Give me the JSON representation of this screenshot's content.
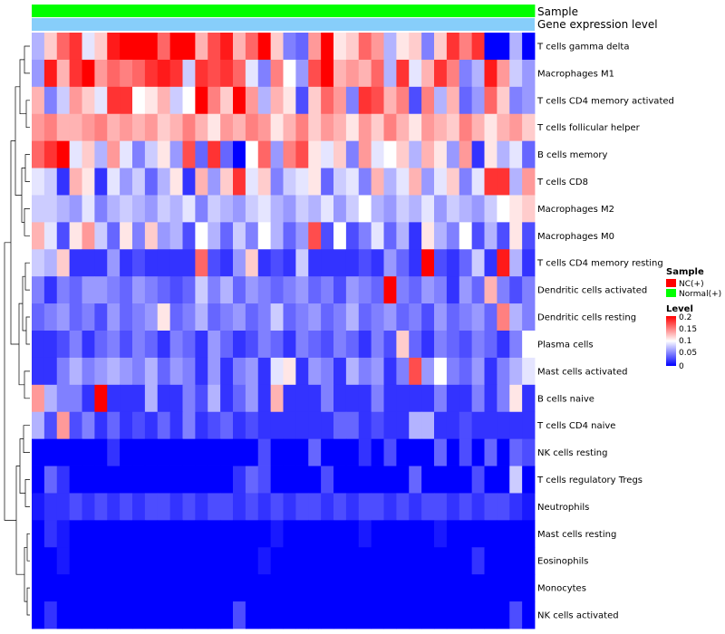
{
  "chart_data": {
    "type": "heatmap",
    "title": "",
    "annotation_tracks": [
      "Sample",
      "Gene expression level"
    ],
    "sample_groups": [
      "N",
      "N",
      "N",
      "N",
      "N",
      "N",
      "N",
      "N",
      "N",
      "N",
      "N",
      "N",
      "N",
      "N",
      "N",
      "N",
      "N",
      "N",
      "N",
      "N",
      "N",
      "N",
      "N",
      "N",
      "N",
      "N",
      "N",
      "N",
      "N",
      "N",
      "N",
      "N",
      "N",
      "N",
      "N",
      "N",
      "N",
      "N",
      "N",
      "N"
    ],
    "rows": [
      "T cells gamma delta",
      "Macrophages M1",
      "T cells CD4 memory activated",
      "T cells follicular helper",
      "B cells memory",
      "T cells CD8",
      "Macrophages M2",
      "Macrophages M0",
      "T cells CD4 memory resting",
      "Dendritic cells activated",
      "Dendritic cells resting",
      "Plasma cells",
      "Mast cells activated",
      "B cells naive",
      "T cells CD4 naive",
      "NK cells resting",
      "T cells regulatory  Tregs",
      "Neutrophils",
      "Mast cells resting",
      "Eosinophils",
      "Monocytes",
      "NK cells activated"
    ],
    "values": [
      [
        0.07,
        0.12,
        0.16,
        0.18,
        0.09,
        0.12,
        0.19,
        0.21,
        0.22,
        0.21,
        0.16,
        0.22,
        0.2,
        0.13,
        0.17,
        0.19,
        0.13,
        0.16,
        0.21,
        0.12,
        0.05,
        0.04,
        0.14,
        0.21,
        0.11,
        0.12,
        0.16,
        0.14,
        0.07,
        0.11,
        0.12,
        0.05,
        0.12,
        0.18,
        0.15,
        0.18,
        0.0,
        0.0,
        0.07,
        0.0
      ],
      [
        0.06,
        0.19,
        0.13,
        0.18,
        0.2,
        0.14,
        0.16,
        0.15,
        0.16,
        0.18,
        0.19,
        0.18,
        0.08,
        0.18,
        0.17,
        0.18,
        0.16,
        0.09,
        0.05,
        0.15,
        0.1,
        0.06,
        0.17,
        0.21,
        0.13,
        0.14,
        0.13,
        0.16,
        0.07,
        0.18,
        0.09,
        0.13,
        0.18,
        0.15,
        0.05,
        0.07,
        0.19,
        0.14,
        0.08,
        0.06
      ],
      [
        0.13,
        0.05,
        0.08,
        0.14,
        0.12,
        0.09,
        0.18,
        0.18,
        0.1,
        0.11,
        0.13,
        0.08,
        0.1,
        0.21,
        0.15,
        0.12,
        0.21,
        0.14,
        0.07,
        0.13,
        0.11,
        0.03,
        0.12,
        0.16,
        0.14,
        0.05,
        0.18,
        0.17,
        0.13,
        0.15,
        0.03,
        0.15,
        0.07,
        0.13,
        0.04,
        0.06,
        0.16,
        0.12,
        0.05,
        0.06
      ],
      [
        0.14,
        0.15,
        0.13,
        0.13,
        0.14,
        0.15,
        0.13,
        0.14,
        0.13,
        0.14,
        0.12,
        0.13,
        0.15,
        0.13,
        0.11,
        0.14,
        0.13,
        0.15,
        0.14,
        0.11,
        0.13,
        0.15,
        0.12,
        0.14,
        0.13,
        0.11,
        0.14,
        0.12,
        0.15,
        0.13,
        0.11,
        0.14,
        0.13,
        0.12,
        0.15,
        0.13,
        0.11,
        0.13,
        0.14,
        0.12
      ],
      [
        0.16,
        0.18,
        0.21,
        0.09,
        0.12,
        0.07,
        0.14,
        0.09,
        0.05,
        0.08,
        0.11,
        0.06,
        0.17,
        0.04,
        0.18,
        0.04,
        0.0,
        0.1,
        0.16,
        0.06,
        0.15,
        0.17,
        0.11,
        0.09,
        0.12,
        0.05,
        0.14,
        0.09,
        0.1,
        0.12,
        0.07,
        0.13,
        0.11,
        0.06,
        0.14,
        0.02,
        0.11,
        0.07,
        0.09,
        0.04
      ],
      [
        0.09,
        0.08,
        0.02,
        0.13,
        0.11,
        0.02,
        0.09,
        0.06,
        0.08,
        0.04,
        0.07,
        0.11,
        0.02,
        0.13,
        0.06,
        0.12,
        0.18,
        0.09,
        0.12,
        0.05,
        0.08,
        0.09,
        0.11,
        0.04,
        0.08,
        0.09,
        0.05,
        0.13,
        0.07,
        0.09,
        0.13,
        0.06,
        0.09,
        0.12,
        0.05,
        0.09,
        0.18,
        0.18,
        0.07,
        0.14
      ],
      [
        0.08,
        0.08,
        0.07,
        0.06,
        0.09,
        0.05,
        0.07,
        0.08,
        0.07,
        0.06,
        0.08,
        0.07,
        0.09,
        0.05,
        0.08,
        0.07,
        0.06,
        0.08,
        0.09,
        0.07,
        0.06,
        0.08,
        0.07,
        0.09,
        0.06,
        0.08,
        0.1,
        0.07,
        0.06,
        0.08,
        0.07,
        0.09,
        0.06,
        0.08,
        0.07,
        0.06,
        0.08,
        0.1,
        0.11,
        0.12
      ],
      [
        0.13,
        0.09,
        0.03,
        0.11,
        0.14,
        0.08,
        0.04,
        0.11,
        0.05,
        0.12,
        0.06,
        0.07,
        0.03,
        0.1,
        0.07,
        0.04,
        0.08,
        0.05,
        0.1,
        0.07,
        0.04,
        0.06,
        0.17,
        0.03,
        0.1,
        0.03,
        0.05,
        0.09,
        0.04,
        0.07,
        0.02,
        0.11,
        0.07,
        0.05,
        0.1,
        0.03,
        0.07,
        0.03,
        0.11,
        0.03
      ],
      [
        0.08,
        0.07,
        0.12,
        0.02,
        0.02,
        0.02,
        0.06,
        0.02,
        0.03,
        0.02,
        0.02,
        0.02,
        0.02,
        0.16,
        0.03,
        0.02,
        0.06,
        0.12,
        0.02,
        0.03,
        0.02,
        0.08,
        0.02,
        0.02,
        0.02,
        0.02,
        0.03,
        0.02,
        0.06,
        0.04,
        0.02,
        0.2,
        0.03,
        0.02,
        0.04,
        0.08,
        0.02,
        0.19,
        0.07,
        0.02
      ],
      [
        0.05,
        0.02,
        0.05,
        0.04,
        0.06,
        0.06,
        0.05,
        0.04,
        0.06,
        0.05,
        0.04,
        0.03,
        0.04,
        0.08,
        0.05,
        0.07,
        0.04,
        0.06,
        0.05,
        0.04,
        0.05,
        0.06,
        0.04,
        0.05,
        0.03,
        0.06,
        0.05,
        0.04,
        0.2,
        0.05,
        0.04,
        0.06,
        0.05,
        0.02,
        0.06,
        0.04,
        0.13,
        0.05,
        0.03,
        0.05
      ],
      [
        0.04,
        0.05,
        0.06,
        0.04,
        0.05,
        0.03,
        0.06,
        0.04,
        0.05,
        0.06,
        0.11,
        0.04,
        0.05,
        0.07,
        0.04,
        0.05,
        0.06,
        0.04,
        0.05,
        0.08,
        0.04,
        0.05,
        0.06,
        0.04,
        0.05,
        0.07,
        0.04,
        0.05,
        0.06,
        0.04,
        0.05,
        0.03,
        0.06,
        0.04,
        0.05,
        0.06,
        0.04,
        0.15,
        0.07,
        0.05
      ],
      [
        0.02,
        0.02,
        0.03,
        0.05,
        0.02,
        0.04,
        0.05,
        0.03,
        0.05,
        0.04,
        0.02,
        0.05,
        0.04,
        0.02,
        0.06,
        0.04,
        0.02,
        0.03,
        0.05,
        0.04,
        0.02,
        0.05,
        0.04,
        0.03,
        0.05,
        0.04,
        0.02,
        0.05,
        0.03,
        0.12,
        0.04,
        0.02,
        0.05,
        0.04,
        0.03,
        0.05,
        0.04,
        0.02,
        0.05,
        0.1
      ],
      [
        0.02,
        0.02,
        0.05,
        0.07,
        0.05,
        0.06,
        0.07,
        0.06,
        0.05,
        0.07,
        0.04,
        0.06,
        0.05,
        0.02,
        0.06,
        0.02,
        0.05,
        0.06,
        0.02,
        0.09,
        0.11,
        0.02,
        0.06,
        0.05,
        0.02,
        0.07,
        0.05,
        0.06,
        0.02,
        0.05,
        0.17,
        0.06,
        0.1,
        0.05,
        0.04,
        0.06,
        0.02,
        0.05,
        0.07,
        0.09
      ],
      [
        0.14,
        0.07,
        0.05,
        0.05,
        0.02,
        0.22,
        0.02,
        0.02,
        0.02,
        0.07,
        0.02,
        0.02,
        0.05,
        0.03,
        0.07,
        0.02,
        0.04,
        0.06,
        0.02,
        0.13,
        0.02,
        0.02,
        0.02,
        0.05,
        0.02,
        0.02,
        0.02,
        0.05,
        0.02,
        0.02,
        0.02,
        0.02,
        0.05,
        0.02,
        0.02,
        0.05,
        0.02,
        0.05,
        0.11,
        0.02
      ],
      [
        0.07,
        0.03,
        0.14,
        0.03,
        0.05,
        0.02,
        0.04,
        0.02,
        0.03,
        0.02,
        0.04,
        0.02,
        0.05,
        0.02,
        0.03,
        0.04,
        0.02,
        0.03,
        0.02,
        0.02,
        0.02,
        0.02,
        0.02,
        0.02,
        0.04,
        0.04,
        0.02,
        0.03,
        0.02,
        0.02,
        0.07,
        0.07,
        0.02,
        0.02,
        0.03,
        0.02,
        0.02,
        0.02,
        0.02,
        0.02
      ],
      [
        0.0,
        0.0,
        0.0,
        0.0,
        0.0,
        0.0,
        0.02,
        0.0,
        0.0,
        0.0,
        0.0,
        0.0,
        0.0,
        0.0,
        0.0,
        0.0,
        0.0,
        0.0,
        0.03,
        0.0,
        0.0,
        0.0,
        0.04,
        0.0,
        0.0,
        0.0,
        0.02,
        0.0,
        0.03,
        0.0,
        0.0,
        0.0,
        0.04,
        0.0,
        0.03,
        0.0,
        0.04,
        0.0,
        0.04,
        0.03
      ],
      [
        0.0,
        0.04,
        0.02,
        0.0,
        0.0,
        0.0,
        0.0,
        0.0,
        0.0,
        0.0,
        0.0,
        0.0,
        0.0,
        0.0,
        0.0,
        0.0,
        0.02,
        0.04,
        0.03,
        0.0,
        0.0,
        0.0,
        0.0,
        0.03,
        0.0,
        0.0,
        0.0,
        0.0,
        0.0,
        0.0,
        0.04,
        0.0,
        0.0,
        0.0,
        0.0,
        0.03,
        0.0,
        0.0,
        0.08,
        0.0
      ],
      [
        0.01,
        0.02,
        0.02,
        0.03,
        0.02,
        0.03,
        0.02,
        0.03,
        0.02,
        0.03,
        0.03,
        0.02,
        0.03,
        0.02,
        0.03,
        0.03,
        0.02,
        0.03,
        0.02,
        0.03,
        0.02,
        0.03,
        0.03,
        0.02,
        0.03,
        0.02,
        0.03,
        0.03,
        0.02,
        0.03,
        0.02,
        0.03,
        0.03,
        0.02,
        0.03,
        0.02,
        0.03,
        0.03,
        0.02,
        0.01
      ],
      [
        0.0,
        0.02,
        0.01,
        0.0,
        0.0,
        0.0,
        0.0,
        0.0,
        0.0,
        0.0,
        0.0,
        0.0,
        0.0,
        0.0,
        0.0,
        0.0,
        0.0,
        0.0,
        0.0,
        0.01,
        0.0,
        0.0,
        0.0,
        0.0,
        0.0,
        0.0,
        0.01,
        0.0,
        0.0,
        0.0,
        0.0,
        0.0,
        0.01,
        0.0,
        0.0,
        0.0,
        0.0,
        0.0,
        0.0,
        0.0
      ],
      [
        0.0,
        0.0,
        0.01,
        0.0,
        0.0,
        0.0,
        0.0,
        0.0,
        0.0,
        0.0,
        0.0,
        0.0,
        0.0,
        0.0,
        0.0,
        0.0,
        0.0,
        0.0,
        0.01,
        0.0,
        0.0,
        0.0,
        0.0,
        0.0,
        0.0,
        0.0,
        0.0,
        0.0,
        0.0,
        0.0,
        0.0,
        0.0,
        0.0,
        0.0,
        0.0,
        0.02,
        0.0,
        0.0,
        0.0,
        0.0
      ],
      [
        0.0,
        0.0,
        0.0,
        0.0,
        0.0,
        0.0,
        0.0,
        0.0,
        0.0,
        0.0,
        0.0,
        0.0,
        0.0,
        0.0,
        0.0,
        0.0,
        0.0,
        0.0,
        0.0,
        0.0,
        0.0,
        0.0,
        0.0,
        0.0,
        0.0,
        0.0,
        0.0,
        0.0,
        0.0,
        0.0,
        0.0,
        0.0,
        0.0,
        0.0,
        0.0,
        0.0,
        0.0,
        0.0,
        0.0,
        0.0
      ],
      [
        0.0,
        0.02,
        0.0,
        0.0,
        0.0,
        0.0,
        0.0,
        0.0,
        0.0,
        0.0,
        0.0,
        0.0,
        0.0,
        0.0,
        0.0,
        0.0,
        0.03,
        0.0,
        0.0,
        0.0,
        0.0,
        0.0,
        0.0,
        0.0,
        0.0,
        0.0,
        0.0,
        0.0,
        0.0,
        0.0,
        0.0,
        0.0,
        0.0,
        0.0,
        0.0,
        0.0,
        0.0,
        0.0,
        0.03,
        0.0
      ]
    ],
    "color_scale": {
      "min": 0,
      "max": 0.2,
      "low": "#0000FF",
      "mid": "#FFFFFF",
      "high": "#FF0000"
    },
    "dendrogram": "rows",
    "legend_position": "right"
  },
  "legend": {
    "sample_title": "Sample",
    "sample_entries": [
      {
        "label": "NC(+)",
        "color": "#FF0000"
      },
      {
        "label": "Normal(+)",
        "color": "#00FF00"
      }
    ],
    "level_title": "Level",
    "level_ticks": [
      "0.2",
      "0.15",
      "0.1",
      "0.05",
      "0"
    ]
  },
  "colors": {
    "nc": "#FF0000",
    "normal": "#00FF00",
    "expression_bar": "#87CEFA"
  }
}
